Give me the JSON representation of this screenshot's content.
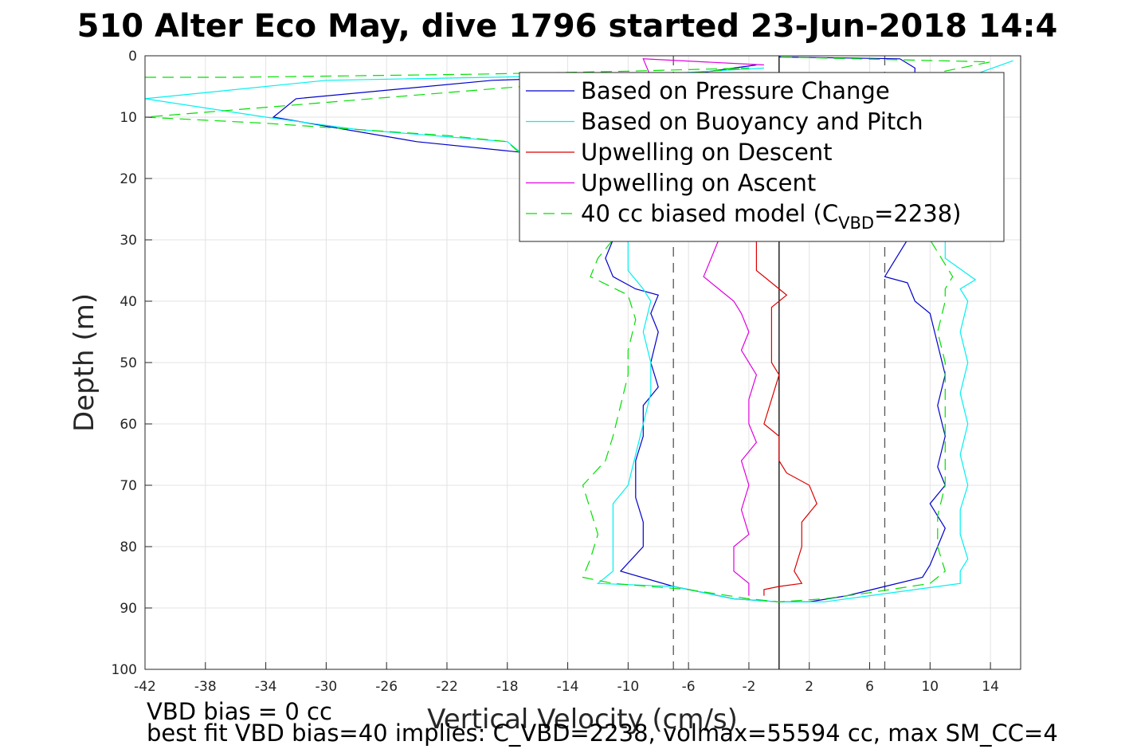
{
  "title": "510 Alter Eco May, dive 1796 started 23-Jun-2018 14:4",
  "footer": {
    "line1": "VBD bias = 0 cc",
    "line2": "best fit VBD bias=40 implies: C_VBD=2238, volmax=55594 cc, max SM_CC=4"
  },
  "chart_data": {
    "type": "line",
    "title": "510 Alter Eco May, dive 1796 started 23-Jun-2018 14:4",
    "xlabel": "Vertical Velocity (cm/s)",
    "ylabel": "Depth (m)",
    "xlim": [
      -42,
      16
    ],
    "ylim": [
      0,
      100
    ],
    "y_reversed": true,
    "grid": true,
    "xticks": [
      -42,
      -38,
      -34,
      -30,
      -26,
      -22,
      -18,
      -14,
      -10,
      -6,
      -2,
      2,
      6,
      10,
      14
    ],
    "yticks": [
      0,
      10,
      20,
      30,
      40,
      50,
      60,
      70,
      80,
      90,
      100
    ],
    "legend_position": "top-right",
    "reference_lines": [
      {
        "x": 0,
        "style": "solid",
        "color": "#000000"
      },
      {
        "x": -7,
        "style": "dashed",
        "color": "#555555"
      },
      {
        "x": 7,
        "style": "dashed",
        "color": "#555555"
      }
    ],
    "series": [
      {
        "name": "Based on Pressure Change",
        "color": "#0000cc",
        "dash": "",
        "points": [
          [
            -1.5,
            1.5
          ],
          [
            -6,
            3
          ],
          [
            -19,
            4
          ],
          [
            -32,
            7
          ],
          [
            -33.5,
            10
          ],
          [
            -24,
            14
          ],
          [
            -16,
            16
          ],
          [
            -11,
            30
          ],
          [
            -11.5,
            33
          ],
          [
            -11,
            36
          ],
          [
            -9.5,
            38
          ],
          [
            -8,
            39
          ],
          [
            -8.5,
            42
          ],
          [
            -8,
            45
          ],
          [
            -8.5,
            50
          ],
          [
            -8,
            54
          ],
          [
            -9,
            57
          ],
          [
            -9,
            62
          ],
          [
            -9.5,
            66
          ],
          [
            -9.5,
            72
          ],
          [
            -9,
            76
          ],
          [
            -9,
            80
          ],
          [
            -10.5,
            84
          ],
          [
            -7,
            86.5
          ],
          [
            -3,
            88.5
          ],
          [
            0,
            89
          ],
          [
            2,
            89
          ],
          [
            4.5,
            88
          ],
          [
            7,
            86.5
          ],
          [
            9.5,
            85
          ],
          [
            10,
            83
          ],
          [
            10.5,
            80
          ],
          [
            11,
            77
          ],
          [
            10,
            73
          ],
          [
            11,
            70
          ],
          [
            10.5,
            67
          ],
          [
            11,
            62
          ],
          [
            10.5,
            57
          ],
          [
            11,
            52
          ],
          [
            10.5,
            47
          ],
          [
            10,
            42
          ],
          [
            9,
            40
          ],
          [
            8.5,
            37
          ],
          [
            7,
            36
          ],
          [
            7.5,
            34
          ],
          [
            8.5,
            30
          ],
          [
            9,
            2
          ],
          [
            8,
            0.5
          ],
          [
            0,
            0.2
          ]
        ]
      },
      {
        "name": "Based on Buoyancy and Pitch",
        "color": "#00f0f0",
        "dash": "",
        "points": [
          [
            -1,
            2
          ],
          [
            -8,
            3
          ],
          [
            -30,
            4
          ],
          [
            -42,
            7
          ],
          [
            -34,
            10
          ],
          [
            -28,
            12
          ],
          [
            -18,
            14
          ],
          [
            -10,
            30
          ],
          [
            -10,
            35
          ],
          [
            -9,
            38
          ],
          [
            -8.5,
            40
          ],
          [
            -9,
            45
          ],
          [
            -8.5,
            50
          ],
          [
            -8.5,
            55
          ],
          [
            -9,
            60
          ],
          [
            -9.5,
            65
          ],
          [
            -10,
            70
          ],
          [
            -11,
            73
          ],
          [
            -11,
            78
          ],
          [
            -11,
            84
          ],
          [
            -12,
            86
          ],
          [
            -7,
            86.5
          ],
          [
            -3,
            88.5
          ],
          [
            0,
            89
          ],
          [
            3,
            89
          ],
          [
            6,
            88
          ],
          [
            9,
            87
          ],
          [
            12,
            86
          ],
          [
            12,
            84
          ],
          [
            12.5,
            82
          ],
          [
            12,
            78
          ],
          [
            12,
            74
          ],
          [
            12.5,
            70
          ],
          [
            12,
            65
          ],
          [
            12.5,
            60
          ],
          [
            12,
            55
          ],
          [
            12.5,
            50
          ],
          [
            12,
            45
          ],
          [
            12.5,
            40
          ],
          [
            12,
            38
          ],
          [
            13,
            36.5
          ],
          [
            11,
            33
          ],
          [
            11,
            30
          ],
          [
            13,
            3
          ],
          [
            15.5,
            0.8
          ]
        ]
      },
      {
        "name": "Upwelling on Descent",
        "color": "#dd0000",
        "dash": "",
        "points": [
          [
            -1.5,
            30
          ],
          [
            -1.5,
            35
          ],
          [
            -0.5,
            37
          ],
          [
            0.5,
            39
          ],
          [
            -0.5,
            41
          ],
          [
            -0.5,
            45
          ],
          [
            -0.5,
            50
          ],
          [
            0,
            52
          ],
          [
            -0.5,
            56
          ],
          [
            -1,
            60
          ],
          [
            0,
            62
          ],
          [
            0,
            66
          ],
          [
            0.5,
            68
          ],
          [
            2,
            70
          ],
          [
            2.5,
            73
          ],
          [
            1.5,
            76
          ],
          [
            1.5,
            80
          ],
          [
            1,
            84
          ],
          [
            1.5,
            86
          ],
          [
            0,
            86.5
          ],
          [
            -1,
            87
          ],
          [
            -1,
            88
          ]
        ]
      },
      {
        "name": "Upwelling on Ascent",
        "color": "#e000e0",
        "dash": "",
        "points": [
          [
            -1,
            1.5
          ],
          [
            -9,
            0.5
          ],
          [
            -4,
            30
          ],
          [
            -4.5,
            33
          ],
          [
            -5,
            36
          ],
          [
            -4,
            38
          ],
          [
            -3,
            40
          ],
          [
            -2.5,
            42
          ],
          [
            -2,
            45
          ],
          [
            -2.5,
            48
          ],
          [
            -1.5,
            52
          ],
          [
            -2,
            56
          ],
          [
            -2,
            60
          ],
          [
            -1.5,
            63
          ],
          [
            -2.5,
            66
          ],
          [
            -2,
            70
          ],
          [
            -2.5,
            74
          ],
          [
            -2,
            78
          ],
          [
            -3,
            80
          ],
          [
            -3,
            84
          ],
          [
            -2,
            86
          ],
          [
            -2,
            88
          ]
        ]
      },
      {
        "name": "40 cc biased model (C_VBD=2238)",
        "legend_label": "40 cc biased model (C",
        "legend_sub": "VBD",
        "legend_tail": "=2238)",
        "color": "#00e000",
        "dash": "14,8",
        "points": [
          [
            -42,
            3.5
          ],
          [
            -36,
            3.5
          ],
          [
            -20,
            3
          ],
          [
            -10,
            2.5
          ],
          [
            -2,
            2
          ],
          [
            -42,
            10
          ],
          [
            -34,
            11
          ],
          [
            -22,
            13
          ],
          [
            -18,
            14
          ],
          [
            -11,
            30
          ],
          [
            -12,
            33
          ],
          [
            -12.5,
            36
          ],
          [
            -10,
            39
          ],
          [
            -9.5,
            43
          ],
          [
            -10,
            48
          ],
          [
            -10,
            52
          ],
          [
            -10.5,
            57
          ],
          [
            -11,
            62
          ],
          [
            -11.5,
            66
          ],
          [
            -13,
            70
          ],
          [
            -12.5,
            74
          ],
          [
            -12,
            78
          ],
          [
            -12.5,
            82
          ],
          [
            -13,
            85
          ],
          [
            -11,
            86
          ],
          [
            -6,
            87
          ],
          [
            -2,
            88.5
          ],
          [
            0,
            89
          ],
          [
            3,
            88.5
          ],
          [
            6,
            87.5
          ],
          [
            10,
            86
          ],
          [
            11,
            84
          ],
          [
            10.5,
            80
          ],
          [
            10.5,
            75
          ],
          [
            11,
            70
          ],
          [
            11,
            65
          ],
          [
            11,
            60
          ],
          [
            11,
            55
          ],
          [
            11,
            50
          ],
          [
            10.5,
            45
          ],
          [
            11,
            40
          ],
          [
            11,
            38
          ],
          [
            11.5,
            36
          ],
          [
            10,
            30
          ],
          [
            10,
            3
          ],
          [
            14,
            1
          ],
          [
            0,
            0.2
          ]
        ]
      }
    ]
  }
}
